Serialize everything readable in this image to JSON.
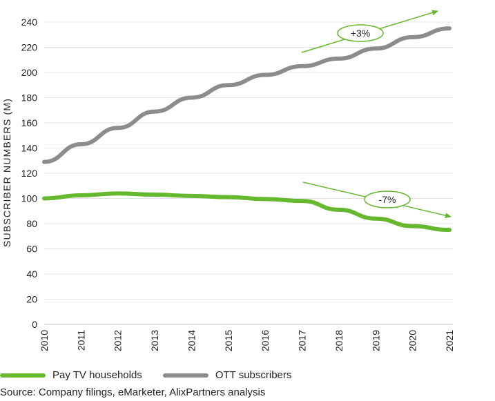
{
  "chart_data": {
    "type": "line",
    "x": [
      2010,
      2011,
      2012,
      2013,
      2014,
      2015,
      2016,
      2017,
      2018,
      2019,
      2020,
      2021
    ],
    "xlabel": "",
    "ylabel": "SUBSCRIBER NUMBERS (M)",
    "ylim": [
      0,
      240
    ],
    "yticks": [
      0,
      20,
      40,
      60,
      80,
      100,
      120,
      140,
      160,
      180,
      200,
      220,
      240
    ],
    "grid": true,
    "legend_placement": "bottom",
    "series": [
      {
        "name": "Pay TV households",
        "color": "#66b82f",
        "values": [
          100,
          102.5,
          104,
          103,
          102,
          101,
          99.5,
          98,
          91,
          84,
          78,
          75
        ]
      },
      {
        "name": "OTT subscribers",
        "color": "#8c8c8c",
        "values": [
          129,
          143,
          156,
          169,
          180,
          190,
          198,
          205,
          211,
          219,
          228,
          235
        ]
      }
    ],
    "annotations": [
      {
        "text": "+3%",
        "series": "OTT subscribers",
        "direction": "up"
      },
      {
        "text": "-7%",
        "series": "Pay TV households",
        "direction": "down"
      }
    ]
  },
  "source": "Source: Company filings, eMarketer, AlixPartners analysis"
}
